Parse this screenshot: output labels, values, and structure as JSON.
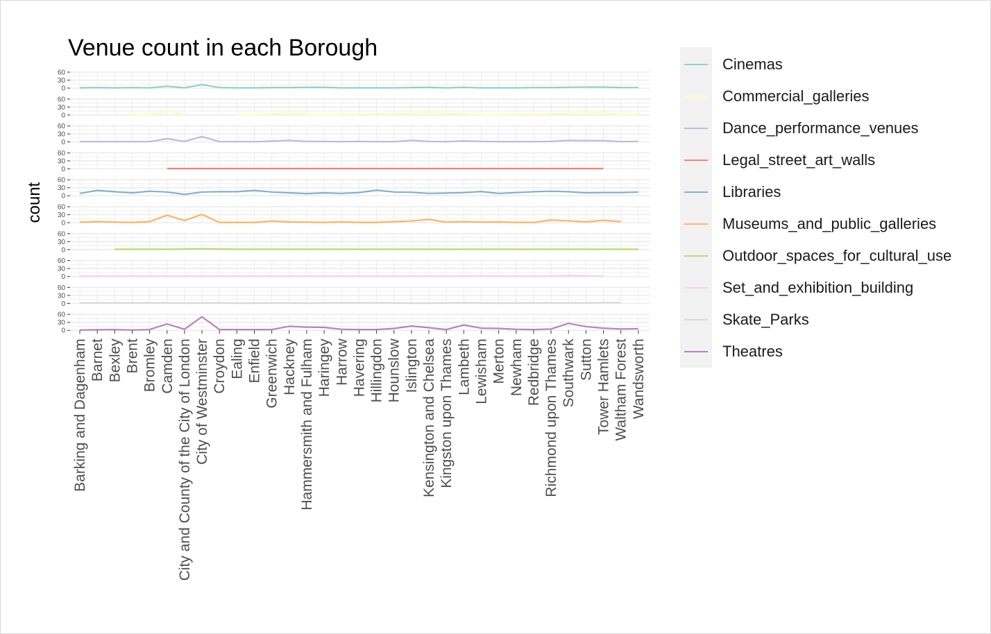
{
  "chart_data": {
    "type": "line",
    "title": "Venue count in each Borough",
    "xlabel": "",
    "ylabel": "count",
    "ylim": [
      0,
      60
    ],
    "yticks": [
      0,
      30,
      60
    ],
    "layout": "faceted-stacked-panels",
    "categories": [
      "Barking and Dagenham",
      "Barnet",
      "Bexley",
      "Brent",
      "Bromley",
      "Camden",
      "City and County of the City of London",
      "City of Westminster",
      "Croydon",
      "Ealing",
      "Enfield",
      "Greenwich",
      "Hackney",
      "Hammersmith and Fulham",
      "Haringey",
      "Harrow",
      "Havering",
      "Hillingdon",
      "Hounslow",
      "Islington",
      "Kensington and Chelsea",
      "Kingston upon Thames",
      "Lambeth",
      "Lewisham",
      "Merton",
      "Newham",
      "Redbridge",
      "Richmond upon Thames",
      "Southwark",
      "Sutton",
      "Tower Hamlets",
      "Waltham Forest",
      "Wandsworth"
    ],
    "series": [
      {
        "name": "Cinemas",
        "color": "#8dd3c7",
        "values": [
          1,
          2,
          1,
          2,
          1,
          7,
          1,
          13,
          2,
          1,
          1,
          2,
          2,
          3,
          3,
          1,
          1,
          1,
          1,
          2,
          3,
          1,
          3,
          1,
          1,
          1,
          2,
          2,
          3,
          4,
          4,
          2,
          2
        ]
      },
      {
        "name": "Commercial_galleries",
        "color": "#ffffb3",
        "values": [
          null,
          null,
          null,
          1,
          1,
          14,
          2,
          null,
          null,
          1,
          1,
          4,
          9,
          2,
          1,
          2,
          3,
          4,
          4,
          7,
          10,
          6,
          4,
          1,
          1,
          4,
          3,
          4,
          6,
          8,
          9,
          1,
          3
        ]
      },
      {
        "name": "Dance_performance_venues",
        "color": "#bebada",
        "values": [
          1,
          1,
          1,
          1,
          1,
          12,
          2,
          20,
          1,
          1,
          1,
          3,
          6,
          2,
          2,
          1,
          2,
          1,
          1,
          6,
          2,
          1,
          4,
          2,
          1,
          1,
          1,
          2,
          6,
          5,
          5,
          1,
          2
        ]
      },
      {
        "name": "Legal_street_art_walls",
        "color": "#fb8072",
        "values": [
          null,
          null,
          null,
          null,
          null,
          1,
          1,
          1,
          1,
          1,
          1,
          1,
          1,
          1,
          1,
          1,
          1,
          1,
          1,
          1,
          1,
          1,
          1,
          1,
          1,
          1,
          1,
          1,
          1,
          1,
          1,
          null,
          null
        ]
      },
      {
        "name": "Libraries",
        "color": "#80b1d3",
        "values": [
          9,
          20,
          15,
          11,
          17,
          14,
          5,
          14,
          15,
          15,
          20,
          14,
          11,
          8,
          11,
          9,
          12,
          21,
          14,
          13,
          9,
          10,
          12,
          16,
          9,
          12,
          15,
          17,
          15,
          11,
          12,
          12,
          14
        ]
      },
      {
        "name": "Museums_and_public_galleries",
        "color": "#fdb462",
        "values": [
          2,
          4,
          2,
          1,
          4,
          28,
          8,
          31,
          1,
          1,
          1,
          6,
          3,
          2,
          1,
          3,
          1,
          1,
          4,
          6,
          12,
          2,
          4,
          2,
          3,
          1,
          1,
          10,
          7,
          3,
          9,
          4,
          null
        ]
      },
      {
        "name": "Outdoor_spaces_for_cultural_use",
        "color": "#b3de69",
        "values": [
          null,
          null,
          1,
          1,
          1,
          1,
          2,
          3,
          2,
          1,
          1,
          1,
          1,
          1,
          1,
          1,
          1,
          1,
          1,
          1,
          1,
          1,
          1,
          1,
          1,
          1,
          1,
          1,
          1,
          1,
          1,
          1,
          1
        ]
      },
      {
        "name": "Set_and_exhibition_building",
        "color": "#fccde5",
        "values": [
          1,
          1,
          1,
          2,
          1,
          1,
          1,
          1,
          1,
          1,
          1,
          1,
          1,
          1,
          1,
          1,
          1,
          1,
          1,
          1,
          1,
          1,
          1,
          2,
          1,
          1,
          1,
          1,
          3,
          2,
          1,
          null,
          null
        ]
      },
      {
        "name": "Skate_Parks",
        "color": "#d9d9d9",
        "values": [
          2,
          2,
          2,
          2,
          2,
          2,
          1,
          2,
          2,
          1,
          1,
          2,
          2,
          1,
          2,
          3,
          2,
          3,
          2,
          1,
          1,
          2,
          3,
          2,
          1,
          2,
          2,
          2,
          2,
          2,
          3,
          3,
          null
        ]
      },
      {
        "name": "Theatres",
        "color": "#bc80bd",
        "values": [
          1,
          2,
          3,
          1,
          3,
          24,
          4,
          51,
          3,
          3,
          3,
          3,
          15,
          12,
          11,
          4,
          3,
          3,
          7,
          16,
          10,
          3,
          20,
          8,
          7,
          4,
          3,
          5,
          26,
          14,
          8,
          5,
          6
        ]
      }
    ]
  }
}
